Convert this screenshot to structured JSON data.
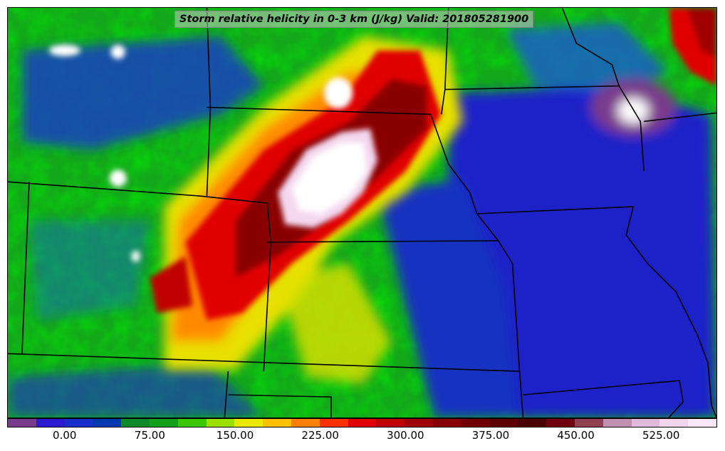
{
  "title": "Storm relative helicity in 0-3 km (J/kg) Valid: 201805281900",
  "colorbar": {
    "colors": [
      "#7a3b8c",
      "#2a1ad0",
      "#1a2ecc",
      "#0038b0",
      "#0e8a2a",
      "#12a01a",
      "#3cc800",
      "#9be000",
      "#e8e800",
      "#ffc000",
      "#ff8000",
      "#ff3000",
      "#e00000",
      "#c00000",
      "#a00000",
      "#880000",
      "#700000",
      "#5c0000",
      "#4a0000",
      "#700010",
      "#904050",
      "#c090b0",
      "#e0b8d8",
      "#f2d4ec",
      "#fae8f6"
    ],
    "ticks": [
      {
        "label": "0.00",
        "pos": 0.081
      },
      {
        "label": "75.00",
        "pos": 0.201
      },
      {
        "label": "150.00",
        "pos": 0.321
      },
      {
        "label": "225.00",
        "pos": 0.441
      },
      {
        "label": "300.00",
        "pos": 0.561
      },
      {
        "label": "375.00",
        "pos": 0.681
      },
      {
        "label": "450.00",
        "pos": 0.801
      },
      {
        "label": "525.00",
        "pos": 0.921
      }
    ]
  }
}
